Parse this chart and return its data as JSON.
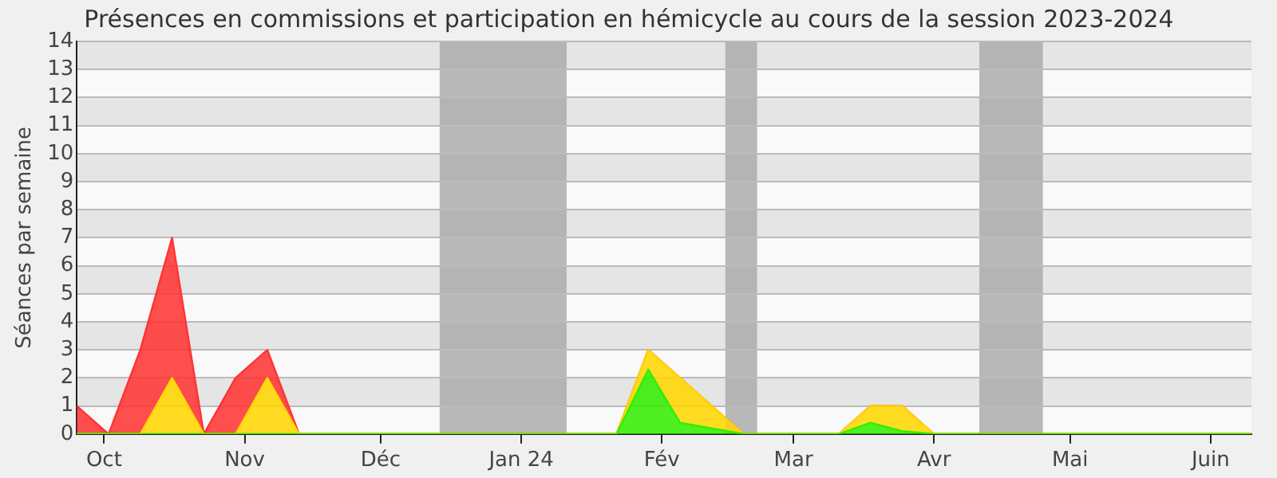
{
  "chart_data": {
    "type": "area",
    "title": "Présences en commissions et participation en hémicycle au cours de la session 2023-2024",
    "ylabel": "Séances par semaine",
    "x": [
      "2023-09-25",
      "2023-10-02",
      "2023-10-09",
      "2023-10-16",
      "2023-10-23",
      "2023-10-30",
      "2023-11-06",
      "2023-11-13",
      "2023-11-20",
      "2023-11-27",
      "2023-12-04",
      "2023-12-11",
      "2023-12-18",
      "2023-12-25",
      "2024-01-01",
      "2024-01-08",
      "2024-01-15",
      "2024-01-22",
      "2024-01-29",
      "2024-02-05",
      "2024-02-12",
      "2024-02-19",
      "2024-02-26",
      "2024-03-04",
      "2024-03-11",
      "2024-03-18",
      "2024-03-25",
      "2024-04-01",
      "2024-04-08",
      "2024-04-15",
      "2024-04-22",
      "2024-04-29",
      "2024-05-06",
      "2024-05-13",
      "2024-05-20",
      "2024-05-27",
      "2024-06-03",
      "2024-06-10"
    ],
    "stacked": true,
    "series": [
      {
        "color": "#33ee00",
        "values": [
          0,
          0,
          0,
          0,
          0,
          0,
          0,
          0,
          0,
          0,
          0,
          0,
          0,
          0,
          0,
          0,
          0,
          0,
          2.3,
          0.4,
          0.2,
          0,
          0,
          0,
          0,
          0.4,
          0.1,
          0,
          0,
          0,
          0,
          0,
          0,
          0,
          0,
          0,
          0,
          0
        ]
      },
      {
        "color": "#ffd700",
        "values": [
          0,
          0,
          0,
          2,
          0,
          0,
          2,
          0,
          0,
          0,
          0,
          0,
          0,
          0,
          0,
          0,
          0,
          0,
          0.7,
          1.6,
          0.8,
          0,
          0,
          0,
          0,
          0.6,
          0.9,
          0,
          0,
          0,
          0,
          0,
          0,
          0,
          0,
          0,
          0,
          0
        ]
      },
      {
        "color": "#ff3333",
        "values": [
          1,
          0,
          3,
          5,
          0,
          2,
          1,
          0,
          0,
          0,
          0,
          0,
          0,
          0,
          0,
          0,
          0,
          0,
          0,
          0,
          0,
          0,
          0,
          0,
          0,
          0,
          0,
          0,
          0,
          0,
          0,
          0,
          0,
          0,
          0,
          0,
          0,
          0
        ]
      }
    ],
    "xlim": [
      "2023-09-25",
      "2024-06-10"
    ],
    "xticks": [
      {
        "value": "2023-10-01",
        "label": "Oct"
      },
      {
        "value": "2023-11-01",
        "label": "Nov"
      },
      {
        "value": "2023-12-01",
        "label": "Déc"
      },
      {
        "value": "2024-01-01",
        "label": "Jan 24"
      },
      {
        "value": "2024-02-01",
        "label": "Fév"
      },
      {
        "value": "2024-03-01",
        "label": "Mar"
      },
      {
        "value": "2024-04-01",
        "label": "Avr"
      },
      {
        "value": "2024-05-01",
        "label": "Mai"
      },
      {
        "value": "2024-06-01",
        "label": "Juin"
      }
    ],
    "ylim": [
      0,
      14
    ],
    "yticks": [
      0,
      1,
      2,
      3,
      4,
      5,
      6,
      7,
      8,
      9,
      10,
      11,
      12,
      13,
      14
    ],
    "bands": [
      {
        "axis": "x",
        "from": "2023-12-14",
        "to": "2024-01-11",
        "color": "#a8a8a8"
      },
      {
        "axis": "x",
        "from": "2024-02-15",
        "to": "2024-02-22",
        "color": "#a8a8a8"
      },
      {
        "axis": "x",
        "from": "2024-04-11",
        "to": "2024-04-25",
        "color": "#a8a8a8"
      }
    ],
    "grid": "y",
    "legend": false,
    "marker": "none"
  }
}
